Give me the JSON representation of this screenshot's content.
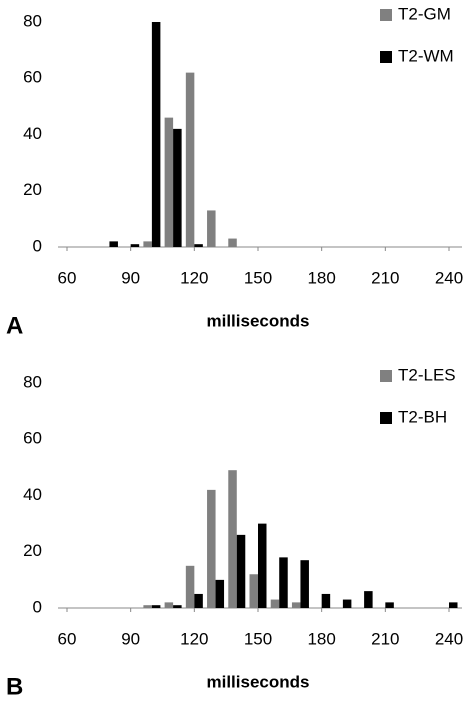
{
  "chart_data": [
    {
      "type": "bar",
      "panel_label": "A",
      "xlabel": "milliseconds",
      "x": [
        60,
        70,
        80,
        90,
        100,
        110,
        120,
        130,
        140,
        150,
        160,
        170,
        180,
        190,
        200,
        210,
        220,
        230,
        240
      ],
      "series": [
        {
          "name": "T2-GM",
          "color": "#808080",
          "values": [
            0,
            0,
            0,
            0,
            2,
            46,
            62,
            13,
            3,
            0,
            0,
            0,
            0,
            0,
            0,
            0,
            0,
            0,
            0
          ]
        },
        {
          "name": "T2-WM",
          "color": "#000000",
          "values": [
            0,
            0,
            2,
            1,
            80,
            42,
            1,
            0,
            0,
            0,
            0,
            0,
            0,
            0,
            0,
            0,
            0,
            0,
            0
          ]
        }
      ],
      "xlim": [
        60,
        240
      ],
      "xticks": [
        60,
        90,
        120,
        150,
        180,
        210,
        240
      ],
      "ylim": [
        0,
        80
      ],
      "yticks": [
        0,
        20,
        40,
        60,
        80
      ],
      "legend": "upper right"
    },
    {
      "type": "bar",
      "panel_label": "B",
      "xlabel": "milliseconds",
      "x": [
        60,
        70,
        80,
        90,
        100,
        110,
        120,
        130,
        140,
        150,
        160,
        170,
        180,
        190,
        200,
        210,
        220,
        230,
        240
      ],
      "series": [
        {
          "name": "T2-LES",
          "color": "#808080",
          "values": [
            0,
            0,
            0,
            0,
            1,
            2,
            15,
            42,
            49,
            12,
            3,
            2,
            0,
            0,
            0,
            0,
            0,
            0,
            0
          ]
        },
        {
          "name": "T2-BH",
          "color": "#000000",
          "values": [
            0,
            0,
            0,
            0,
            1,
            1,
            5,
            10,
            26,
            30,
            18,
            17,
            5,
            3,
            6,
            2,
            0,
            0,
            2
          ]
        }
      ],
      "xlim": [
        60,
        240
      ],
      "xticks": [
        60,
        90,
        120,
        150,
        180,
        210,
        240
      ],
      "ylim": [
        0,
        80
      ],
      "yticks": [
        0,
        20,
        40,
        60,
        80
      ],
      "legend": "upper right"
    }
  ]
}
